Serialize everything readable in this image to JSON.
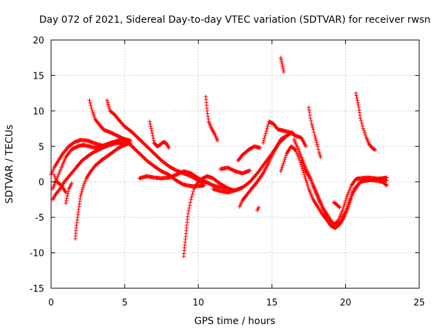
{
  "chart_data": {
    "type": "scatter",
    "title": "Day 072 of 2021, Sidereal Day-to-day VTEC variation (SDTVAR) for receiver rwsn",
    "xlabel": "GPS time / hours",
    "ylabel": "SDTVAR / TECUs",
    "xlim": [
      0,
      25
    ],
    "ylim": [
      -15,
      20
    ],
    "xticks": [
      0,
      5,
      10,
      15,
      20,
      25
    ],
    "yticks": [
      -15,
      -10,
      -5,
      0,
      5,
      10,
      15,
      20
    ],
    "grid": true,
    "marker": "+",
    "color": "#ff0000",
    "series": [
      {
        "name": "track-01",
        "x": [
          0.1,
          0.3,
          0.6,
          0.9,
          1.3,
          1.7,
          2.1,
          2.6,
          3.0,
          3.5,
          4.0,
          4.5,
          5.0
        ],
        "y": [
          -2.5,
          -1.8,
          -1.0,
          0.0,
          1.0,
          2.0,
          3.0,
          3.8,
          4.3,
          4.8,
          5.2,
          5.5,
          5.6
        ]
      },
      {
        "name": "track-02",
        "x": [
          0.0,
          0.2,
          0.5,
          0.8,
          1.2,
          1.6,
          2.0,
          2.5,
          3.0,
          3.5,
          4.0,
          4.5,
          5.0,
          5.4
        ],
        "y": [
          1.0,
          2.0,
          3.0,
          4.0,
          5.0,
          5.6,
          5.9,
          5.8,
          5.4,
          5.1,
          5.4,
          5.8,
          6.0,
          5.8
        ]
      },
      {
        "name": "track-03",
        "x": [
          0.1,
          0.4,
          0.7,
          1.0,
          1.4,
          1.8,
          2.2,
          2.6,
          3.0,
          3.4,
          3.8,
          4.2,
          4.6,
          5.0
        ],
        "y": [
          -1.0,
          0.5,
          2.0,
          3.5,
          4.6,
          5.0,
          5.2,
          5.0,
          4.8,
          5.0,
          5.3,
          5.6,
          5.5,
          5.2
        ]
      },
      {
        "name": "track-04",
        "x": [
          0.2,
          0.4,
          0.7,
          1.0
        ],
        "y": [
          1.0,
          0.0,
          -0.5,
          -1.5
        ]
      },
      {
        "name": "track-05",
        "x": [
          1.0,
          1.1,
          1.2,
          1.4
        ],
        "y": [
          -3.0,
          -2.0,
          -1.0,
          -0.2
        ]
      },
      {
        "name": "track-06",
        "x": [
          1.65,
          1.7,
          1.8,
          1.9,
          2.0,
          2.2,
          2.4,
          2.7,
          3.0,
          3.4,
          3.8,
          4.2,
          4.6,
          5.0,
          5.4
        ],
        "y": [
          -8.0,
          -6.5,
          -5.0,
          -3.5,
          -2.0,
          -0.5,
          0.5,
          1.5,
          2.3,
          3.0,
          3.6,
          4.2,
          4.8,
          5.2,
          5.5
        ]
      },
      {
        "name": "track-07",
        "x": [
          2.6,
          2.8,
          3.0,
          3.3,
          3.6,
          4.0,
          4.5,
          5.0,
          5.5,
          6.0,
          6.5,
          7.0,
          7.5,
          8.0,
          8.5,
          9.0,
          9.5,
          10.0,
          10.4
        ],
        "y": [
          11.5,
          10.0,
          8.8,
          8.0,
          7.3,
          7.0,
          6.5,
          6.0,
          5.0,
          4.0,
          3.0,
          2.2,
          1.5,
          1.0,
          0.2,
          -0.4,
          -0.6,
          -0.6,
          -0.5
        ]
      },
      {
        "name": "track-08",
        "x": [
          3.8,
          4.0,
          4.3,
          4.7,
          5.0,
          5.5,
          6.0,
          6.5,
          7.0,
          7.5,
          8.0,
          8.5,
          9.0,
          9.5,
          10.0,
          10.4
        ],
        "y": [
          11.5,
          10.0,
          9.5,
          8.5,
          7.8,
          7.0,
          6.0,
          5.0,
          4.0,
          3.0,
          2.2,
          1.6,
          1.2,
          0.8,
          0.2,
          -0.3
        ]
      },
      {
        "name": "track-09",
        "x": [
          3.4,
          3.5
        ],
        "y": [
          3.0,
          3.2
        ]
      },
      {
        "name": "track-10",
        "x": [
          6.0,
          6.5,
          7.0,
          7.5,
          8.0,
          8.5,
          9.0,
          9.5,
          10.0,
          10.5,
          11.0,
          11.5,
          12.0,
          12.5,
          13.0
        ],
        "y": [
          0.5,
          0.8,
          0.6,
          0.5,
          0.6,
          1.0,
          1.5,
          1.2,
          0.5,
          0.0,
          -0.5,
          -0.8,
          -1.0,
          -1.2,
          -0.8
        ]
      },
      {
        "name": "track-11",
        "x": [
          6.7,
          6.8,
          6.9,
          7.0,
          7.2,
          7.4,
          7.6,
          7.8,
          8.0
        ],
        "y": [
          8.5,
          7.5,
          6.5,
          5.5,
          5.0,
          5.2,
          5.6,
          5.5,
          4.8
        ]
      },
      {
        "name": "track-12",
        "x": [
          9.0,
          9.1,
          9.2,
          9.3,
          9.5,
          9.7,
          10.0,
          10.3,
          10.6,
          11.0,
          11.5,
          12.0,
          12.3
        ],
        "y": [
          -10.5,
          -8.5,
          -6.5,
          -4.5,
          -2.5,
          -1.0,
          0.0,
          0.5,
          0.8,
          0.5,
          -0.3,
          -0.9,
          -1.2
        ]
      },
      {
        "name": "track-13",
        "x": [
          10.5,
          10.6,
          10.7,
          10.9,
          11.1,
          11.3
        ],
        "y": [
          12.0,
          10.0,
          8.5,
          7.5,
          6.8,
          5.8
        ]
      },
      {
        "name": "track-14",
        "x": [
          11.5,
          12.0,
          12.5,
          13.0,
          13.5
        ],
        "y": [
          1.8,
          2.0,
          1.5,
          1.2,
          1.6
        ]
      },
      {
        "name": "track-15",
        "x": [
          12.7,
          13.0,
          13.4,
          13.8,
          14.2
        ],
        "y": [
          3.0,
          3.8,
          4.5,
          5.0,
          4.8
        ]
      },
      {
        "name": "track-16",
        "x": [
          11.0,
          11.5,
          12.0,
          12.5,
          13.0,
          13.5,
          14.0,
          14.5,
          15.0,
          15.5,
          16.0,
          16.4
        ],
        "y": [
          -1.0,
          -1.3,
          -1.5,
          -1.2,
          -0.8,
          0.0,
          1.2,
          2.6,
          4.0,
          5.5,
          6.5,
          7.0
        ]
      },
      {
        "name": "track-17",
        "x": [
          12.8,
          13.0,
          13.3,
          13.6,
          14.0,
          14.4,
          14.8,
          15.2,
          15.6,
          16.0
        ],
        "y": [
          -3.5,
          -2.6,
          -1.8,
          -1.0,
          0.0,
          1.2,
          2.8,
          4.5,
          6.0,
          6.5
        ]
      },
      {
        "name": "track-18",
        "x": [
          14.0,
          14.1
        ],
        "y": [
          -4.0,
          -3.6
        ]
      },
      {
        "name": "track-19",
        "x": [
          14.4,
          14.8,
          15.1,
          15.4,
          15.8,
          16.2,
          16.6,
          17.0,
          17.3
        ],
        "y": [
          5.5,
          8.5,
          8.2,
          7.4,
          7.2,
          7.0,
          6.5,
          6.2,
          5.0
        ]
      },
      {
        "name": "track-20",
        "x": [
          15.6,
          15.65,
          15.7,
          15.75,
          15.8
        ],
        "y": [
          17.5,
          17.0,
          16.5,
          16.0,
          15.5
        ]
      },
      {
        "name": "track-21",
        "x": [
          15.6,
          16.0,
          16.3,
          16.6,
          16.9,
          17.2,
          17.5,
          17.8,
          18.1,
          18.4,
          18.7,
          19.0,
          19.3,
          19.6,
          19.9,
          20.2,
          20.5,
          21.0,
          21.5,
          22.0,
          22.5,
          22.8
        ],
        "y": [
          1.5,
          4.0,
          5.0,
          4.5,
          3.0,
          1.0,
          -1.0,
          -2.5,
          -3.5,
          -4.5,
          -5.3,
          -6.2,
          -6.5,
          -6.0,
          -5.0,
          -3.5,
          -1.5,
          0.0,
          0.3,
          0.2,
          0.0,
          -0.5
        ]
      },
      {
        "name": "track-22",
        "x": [
          16.5,
          16.8,
          17.1,
          17.4,
          17.7,
          18.0,
          18.3,
          18.6,
          18.9,
          19.2,
          19.5,
          19.8,
          20.1,
          20.4,
          20.7,
          21.0,
          21.5,
          22.0,
          22.5,
          22.8
        ],
        "y": [
          6.0,
          4.5,
          3.0,
          1.5,
          0.0,
          -1.5,
          -3.0,
          -4.5,
          -5.3,
          -6.0,
          -5.5,
          -4.0,
          -2.0,
          -0.5,
          0.4,
          0.5,
          0.6,
          0.5,
          0.3,
          0.2
        ]
      },
      {
        "name": "track-23",
        "x": [
          17.0,
          17.3,
          17.6,
          17.9,
          18.2,
          18.5,
          18.8,
          19.1,
          19.4,
          19.7,
          20.0,
          20.3,
          20.6,
          21.0,
          21.5,
          22.0,
          22.5,
          22.8
        ],
        "y": [
          3.0,
          1.5,
          0.5,
          -1.0,
          -2.5,
          -3.8,
          -4.8,
          -5.8,
          -6.2,
          -5.5,
          -4.2,
          -2.5,
          -1.0,
          0.0,
          0.2,
          0.4,
          0.5,
          0.6
        ]
      },
      {
        "name": "track-24",
        "x": [
          17.5,
          17.55,
          17.6,
          17.7,
          17.8,
          17.9,
          18.0,
          18.1,
          18.2,
          18.3
        ],
        "y": [
          10.5,
          9.8,
          9.0,
          8.2,
          7.4,
          6.6,
          5.8,
          5.0,
          4.2,
          3.5
        ]
      },
      {
        "name": "track-25",
        "x": [
          19.2,
          19.4,
          19.6
        ],
        "y": [
          -2.9,
          -3.2,
          -3.6
        ]
      },
      {
        "name": "track-26",
        "x": [
          20.7,
          20.8,
          20.9,
          21.0,
          21.2,
          21.4,
          21.6,
          21.8,
          22.0
        ],
        "y": [
          12.5,
          11.5,
          10.5,
          9.0,
          7.5,
          6.3,
          5.3,
          4.8,
          4.5
        ]
      }
    ]
  }
}
